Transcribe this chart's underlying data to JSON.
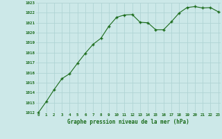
{
  "x": [
    0,
    1,
    2,
    3,
    4,
    5,
    6,
    7,
    8,
    9,
    10,
    11,
    12,
    13,
    14,
    15,
    16,
    17,
    18,
    19,
    20,
    21,
    22,
    23
  ],
  "y": [
    1012.0,
    1013.1,
    1014.3,
    1015.4,
    1015.9,
    1016.95,
    1017.95,
    1018.85,
    1019.45,
    1020.65,
    1021.55,
    1021.78,
    1021.82,
    1021.05,
    1021.0,
    1020.3,
    1020.3,
    1021.1,
    1021.98,
    1022.52,
    1022.62,
    1022.48,
    1022.52,
    1022.1
  ],
  "line_color": "#1a6b1a",
  "marker_color": "#1a6b1a",
  "bg_color": "#cce8e8",
  "grid_color": "#b0d4d4",
  "xlabel": "Graphe pression niveau de la mer (hPa)",
  "xlabel_color": "#1a6b1a",
  "tick_color": "#1a6b1a",
  "ylim_min": 1012,
  "ylim_max": 1023,
  "xlim_min": 0,
  "xlim_max": 23,
  "yticks": [
    1012,
    1013,
    1014,
    1015,
    1016,
    1017,
    1018,
    1019,
    1020,
    1021,
    1022,
    1023
  ],
  "xticks": [
    0,
    1,
    2,
    3,
    4,
    5,
    6,
    7,
    8,
    9,
    10,
    11,
    12,
    13,
    14,
    15,
    16,
    17,
    18,
    19,
    20,
    21,
    22,
    23
  ]
}
